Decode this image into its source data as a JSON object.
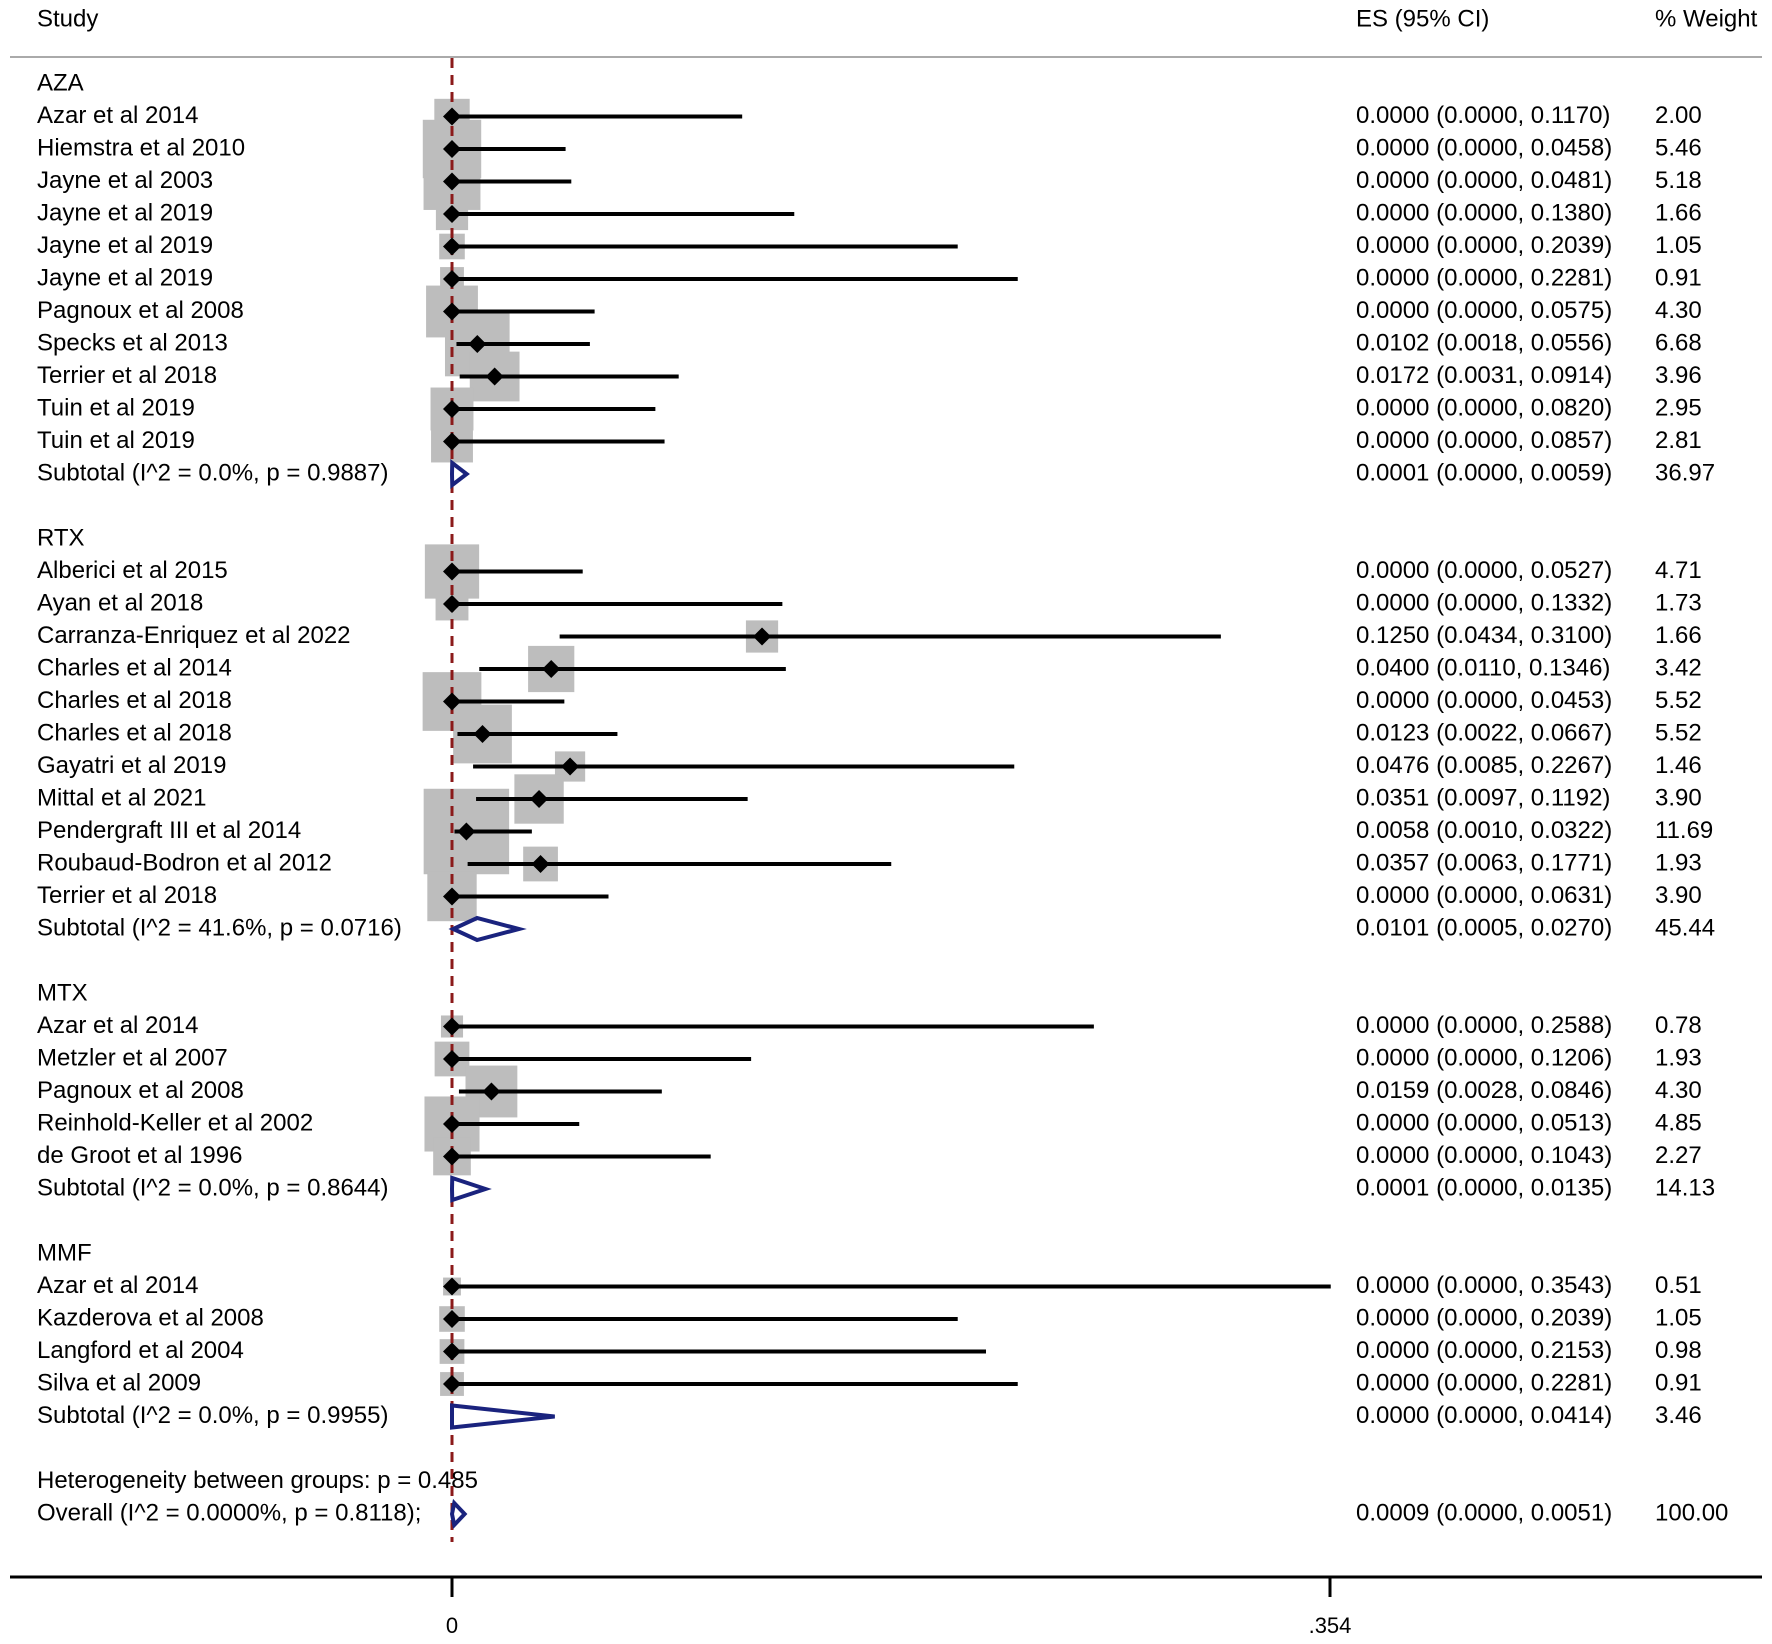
{
  "chart_data": {
    "type": "forest",
    "headers": {
      "study": "Study",
      "es": "ES (95% CI)",
      "weight": "% Weight"
    },
    "x_axis": {
      "min": 0,
      "max": 0.354,
      "ticks": [
        0,
        0.354
      ],
      "tick_labels": [
        "0",
        ".354"
      ],
      "null_line": 0
    },
    "groups": [
      {
        "name": "AZA",
        "studies": [
          {
            "label": "Azar et al 2014",
            "es": 0.0,
            "lo": 0.0,
            "hi": 0.117,
            "ci_text": "0.0000 (0.0000, 0.1170)",
            "weight": 2.0,
            "weight_text": "2.00"
          },
          {
            "label": "Hiemstra et al 2010",
            "es": 0.0,
            "lo": 0.0,
            "hi": 0.0458,
            "ci_text": "0.0000 (0.0000, 0.0458)",
            "weight": 5.46,
            "weight_text": "5.46"
          },
          {
            "label": "Jayne et al 2003",
            "es": 0.0,
            "lo": 0.0,
            "hi": 0.0481,
            "ci_text": "0.0000 (0.0000, 0.0481)",
            "weight": 5.18,
            "weight_text": "5.18"
          },
          {
            "label": "Jayne et al 2019",
            "es": 0.0,
            "lo": 0.0,
            "hi": 0.138,
            "ci_text": "0.0000 (0.0000, 0.1380)",
            "weight": 1.66,
            "weight_text": "1.66"
          },
          {
            "label": "Jayne et al 2019",
            "es": 0.0,
            "lo": 0.0,
            "hi": 0.2039,
            "ci_text": "0.0000 (0.0000, 0.2039)",
            "weight": 1.05,
            "weight_text": "1.05"
          },
          {
            "label": "Jayne et al 2019",
            "es": 0.0,
            "lo": 0.0,
            "hi": 0.2281,
            "ci_text": "0.0000 (0.0000, 0.2281)",
            "weight": 0.91,
            "weight_text": "0.91"
          },
          {
            "label": "Pagnoux et al 2008",
            "es": 0.0,
            "lo": 0.0,
            "hi": 0.0575,
            "ci_text": "0.0000 (0.0000, 0.0575)",
            "weight": 4.3,
            "weight_text": "4.30"
          },
          {
            "label": "Specks et al 2013",
            "es": 0.0102,
            "lo": 0.0018,
            "hi": 0.0556,
            "ci_text": "0.0102 (0.0018, 0.0556)",
            "weight": 6.68,
            "weight_text": "6.68"
          },
          {
            "label": "Terrier et al 2018",
            "es": 0.0172,
            "lo": 0.0031,
            "hi": 0.0914,
            "ci_text": "0.0172 (0.0031, 0.0914)",
            "weight": 3.96,
            "weight_text": "3.96"
          },
          {
            "label": "Tuin et al 2019",
            "es": 0.0,
            "lo": 0.0,
            "hi": 0.082,
            "ci_text": "0.0000 (0.0000, 0.0820)",
            "weight": 2.95,
            "weight_text": "2.95"
          },
          {
            "label": "Tuin et al 2019",
            "es": 0.0,
            "lo": 0.0,
            "hi": 0.0857,
            "ci_text": "0.0000 (0.0000, 0.0857)",
            "weight": 2.81,
            "weight_text": "2.81"
          }
        ],
        "subtotal": {
          "label": "Subtotal  (I^2 = 0.0%, p = 0.9887)",
          "es": 0.0001,
          "lo": 0.0,
          "hi": 0.0059,
          "ci_text": "0.0001 (0.0000, 0.0059)",
          "weight_text": "36.97"
        }
      },
      {
        "name": "RTX",
        "studies": [
          {
            "label": "Alberici et al 2015",
            "es": 0.0,
            "lo": 0.0,
            "hi": 0.0527,
            "ci_text": "0.0000 (0.0000, 0.0527)",
            "weight": 4.71,
            "weight_text": "4.71"
          },
          {
            "label": "Ayan et al 2018",
            "es": 0.0,
            "lo": 0.0,
            "hi": 0.1332,
            "ci_text": "0.0000 (0.0000, 0.1332)",
            "weight": 1.73,
            "weight_text": "1.73"
          },
          {
            "label": "Carranza-Enriquez et al 2022",
            "es": 0.125,
            "lo": 0.0434,
            "hi": 0.31,
            "ci_text": "0.1250 (0.0434, 0.3100)",
            "weight": 1.66,
            "weight_text": "1.66"
          },
          {
            "label": "Charles et al 2014",
            "es": 0.04,
            "lo": 0.011,
            "hi": 0.1346,
            "ci_text": "0.0400 (0.0110, 0.1346)",
            "weight": 3.42,
            "weight_text": "3.42"
          },
          {
            "label": "Charles et al 2018",
            "es": 0.0,
            "lo": 0.0,
            "hi": 0.0453,
            "ci_text": "0.0000 (0.0000, 0.0453)",
            "weight": 5.52,
            "weight_text": "5.52"
          },
          {
            "label": "Charles et al 2018",
            "es": 0.0123,
            "lo": 0.0022,
            "hi": 0.0667,
            "ci_text": "0.0123 (0.0022, 0.0667)",
            "weight": 5.52,
            "weight_text": "5.52"
          },
          {
            "label": "Gayatri et al 2019",
            "es": 0.0476,
            "lo": 0.0085,
            "hi": 0.2267,
            "ci_text": "0.0476 (0.0085, 0.2267)",
            "weight": 1.46,
            "weight_text": "1.46"
          },
          {
            "label": "Mittal et al 2021",
            "es": 0.0351,
            "lo": 0.0097,
            "hi": 0.1192,
            "ci_text": "0.0351 (0.0097, 0.1192)",
            "weight": 3.9,
            "weight_text": "3.90"
          },
          {
            "label": "Pendergraft III et al 2014",
            "es": 0.0058,
            "lo": 0.001,
            "hi": 0.0322,
            "ci_text": "0.0058 (0.0010, 0.0322)",
            "weight": 11.69,
            "weight_text": "11.69"
          },
          {
            "label": "Roubaud-Bodron et al 2012",
            "es": 0.0357,
            "lo": 0.0063,
            "hi": 0.1771,
            "ci_text": "0.0357 (0.0063, 0.1771)",
            "weight": 1.93,
            "weight_text": "1.93"
          },
          {
            "label": "Terrier et al 2018",
            "es": 0.0,
            "lo": 0.0,
            "hi": 0.0631,
            "ci_text": "0.0000 (0.0000, 0.0631)",
            "weight": 3.9,
            "weight_text": "3.90"
          }
        ],
        "subtotal": {
          "label": "Subtotal  (I^2 = 41.6%, p = 0.0716)",
          "es": 0.0101,
          "lo": 0.0005,
          "hi": 0.027,
          "ci_text": "0.0101 (0.0005, 0.0270)",
          "weight_text": "45.44"
        }
      },
      {
        "name": "MTX",
        "studies": [
          {
            "label": "Azar et al 2014",
            "es": 0.0,
            "lo": 0.0,
            "hi": 0.2588,
            "ci_text": "0.0000 (0.0000, 0.2588)",
            "weight": 0.78,
            "weight_text": "0.78"
          },
          {
            "label": "Metzler et al 2007",
            "es": 0.0,
            "lo": 0.0,
            "hi": 0.1206,
            "ci_text": "0.0000 (0.0000, 0.1206)",
            "weight": 1.93,
            "weight_text": "1.93"
          },
          {
            "label": "Pagnoux et al 2008",
            "es": 0.0159,
            "lo": 0.0028,
            "hi": 0.0846,
            "ci_text": "0.0159 (0.0028, 0.0846)",
            "weight": 4.3,
            "weight_text": "4.30"
          },
          {
            "label": "Reinhold-Keller et al 2002",
            "es": 0.0,
            "lo": 0.0,
            "hi": 0.0513,
            "ci_text": "0.0000 (0.0000, 0.0513)",
            "weight": 4.85,
            "weight_text": "4.85"
          },
          {
            "label": "de Groot et al 1996",
            "es": 0.0,
            "lo": 0.0,
            "hi": 0.1043,
            "ci_text": "0.0000 (0.0000, 0.1043)",
            "weight": 2.27,
            "weight_text": "2.27"
          }
        ],
        "subtotal": {
          "label": "Subtotal  (I^2 = 0.0%, p = 0.8644)",
          "es": 0.0001,
          "lo": 0.0,
          "hi": 0.0135,
          "ci_text": "0.0001 (0.0000, 0.0135)",
          "weight_text": "14.13"
        }
      },
      {
        "name": "MMF",
        "studies": [
          {
            "label": "Azar et al 2014",
            "es": 0.0,
            "lo": 0.0,
            "hi": 0.3543,
            "ci_text": "0.0000 (0.0000, 0.3543)",
            "weight": 0.51,
            "weight_text": "0.51"
          },
          {
            "label": "Kazderova et al 2008",
            "es": 0.0,
            "lo": 0.0,
            "hi": 0.2039,
            "ci_text": "0.0000 (0.0000, 0.2039)",
            "weight": 1.05,
            "weight_text": "1.05"
          },
          {
            "label": "Langford et al 2004",
            "es": 0.0,
            "lo": 0.0,
            "hi": 0.2153,
            "ci_text": "0.0000 (0.0000, 0.2153)",
            "weight": 0.98,
            "weight_text": "0.98"
          },
          {
            "label": "Silva et al 2009",
            "es": 0.0,
            "lo": 0.0,
            "hi": 0.2281,
            "ci_text": "0.0000 (0.0000, 0.2281)",
            "weight": 0.91,
            "weight_text": "0.91"
          }
        ],
        "subtotal": {
          "label": "Subtotal  (I^2 = 0.0%, p = 0.9955)",
          "es": 0.0,
          "lo": 0.0,
          "hi": 0.0414,
          "ci_text": "0.0000 (0.0000, 0.0414)",
          "weight_text": "3.46"
        }
      }
    ],
    "heterogeneity_text": "Heterogeneity between groups: p = 0.485",
    "overall": {
      "label": "Overall  (I^2 = 0.0000%, p = 0.8118);",
      "es": 0.0009,
      "lo": 0.0,
      "hi": 0.0051,
      "ci_text": "0.0009 (0.0000, 0.0051)",
      "weight_text": "100.00"
    },
    "colors": {
      "weight_box": "#bdbdbd",
      "point": "#000000",
      "ci_line": "#000000",
      "diamond": "#1a237e",
      "null_line": "#8b1a1a",
      "axis": "#000000"
    }
  }
}
